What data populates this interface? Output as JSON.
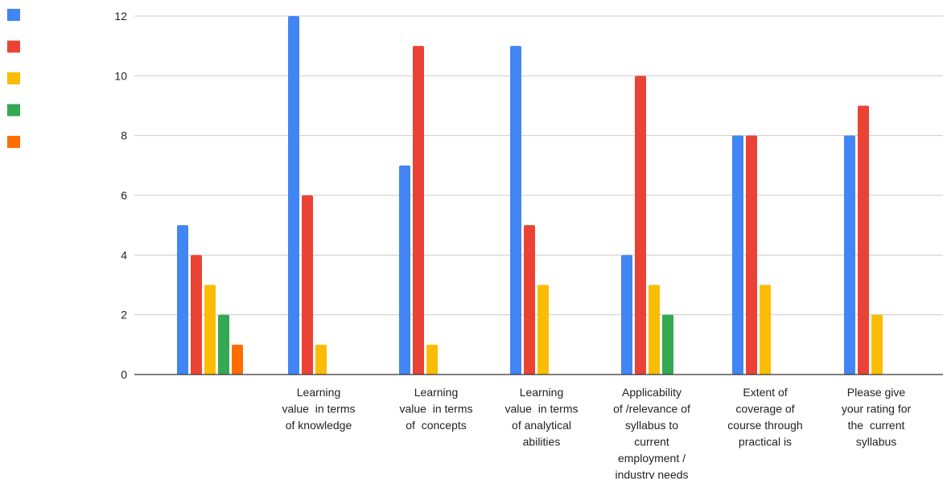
{
  "colors": {
    "gridline": "#cccccc",
    "axis_line": "#333333",
    "text": "#222222",
    "background": "#ffffff"
  },
  "chart_data": {
    "type": "bar",
    "title": "",
    "xlabel": "",
    "ylabel": "",
    "ylim": [
      0,
      12
    ],
    "yticks": [
      0,
      2,
      4,
      6,
      8,
      10,
      12
    ],
    "grid": true,
    "legend_position": "left",
    "categories": [
      "",
      "Learning\nvalue  in terms\nof knowledge",
      "Learning\nvalue  in terms\nof  concepts",
      "Learning\nvalue  in terms\nof analytical\nabilities",
      "Applicability\nof /relevance of\nsyllabus to\ncurrent\nemployment /\nindustry needs",
      "Extent of\ncoverage of\ncourse through\npractical is",
      "Please give\nyour rating for\nthe  current\nsyllabus"
    ],
    "series": [
      {
        "color": "#4285f4",
        "values": [
          5,
          12,
          7,
          11,
          4,
          8,
          8
        ]
      },
      {
        "color": "#ea4335",
        "values": [
          4,
          6,
          11,
          5,
          10,
          8,
          9
        ]
      },
      {
        "color": "#fbbc04",
        "values": [
          3,
          1,
          1,
          3,
          3,
          3,
          2
        ]
      },
      {
        "color": "#34a853",
        "values": [
          2,
          0,
          0,
          0,
          2,
          0,
          0
        ]
      },
      {
        "color": "#ff6d01",
        "values": [
          1,
          0,
          0,
          0,
          0,
          0,
          0
        ]
      }
    ]
  }
}
